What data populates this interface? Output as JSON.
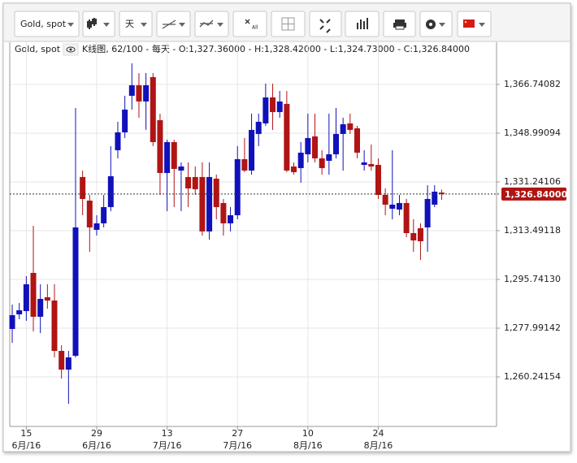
{
  "toolbar": {
    "symbol": "Gold, spot",
    "period": "天",
    "auto_scale_icon": "All"
  },
  "chart_data": {
    "type": "candlestick",
    "symbol": "Gold, spot",
    "info_text": "K线图, 62/100 - 每天 - O:1,327.36000 - H:1,328.42000 - L:1,324.73000 - C:1,326.84000",
    "up_color": "#1111bb",
    "down_color": "#b01414",
    "ylim": [
      1242.2,
      1382.1
    ],
    "xlim": [
      -0.35,
      68.8
    ],
    "yticks": [
      {
        "value": 1260.24154,
        "label": "1,260.24154"
      },
      {
        "value": 1277.99142,
        "label": "1,277.99142"
      },
      {
        "value": 1295.7413,
        "label": "1,295.74130"
      },
      {
        "value": 1313.49118,
        "label": "1,313.49118"
      },
      {
        "value": 1331.24106,
        "label": "1,331.24106"
      },
      {
        "value": 1348.99094,
        "label": "1,348.99094"
      },
      {
        "value": 1366.74082,
        "label": "1,366.74082"
      }
    ],
    "xticks": [
      {
        "value": 2,
        "label": "15",
        "month": "6月/16"
      },
      {
        "value": 12,
        "label": "29",
        "month": "6月/16"
      },
      {
        "value": 22,
        "label": "13",
        "month": "7月/16"
      },
      {
        "value": 32,
        "label": "27",
        "month": "7月/16"
      },
      {
        "value": 42,
        "label": "10",
        "month": "8月/16"
      },
      {
        "value": 52,
        "label": "24",
        "month": "8月/16"
      }
    ],
    "grid": true,
    "last_price": {
      "value": 1326.84,
      "label": "1,326.84000"
    },
    "series": [
      {
        "open": [
          1277.7,
          1283.02,
          1284.21,
          1298.11,
          1282.14,
          1289.24,
          1288.05,
          1269.71,
          1262.9,
          1267.93,
          1333.02,
          1324.44,
          1313.79,
          1316.15,
          1322.07,
          1342.78,
          1349.29,
          1362.6,
          1366.44,
          1360.53,
          1369.4,
          1353.72,
          1334.49,
          1345.74,
          1335.38,
          1333.02,
          1333.02,
          1333.02,
          1313.2,
          1332.42,
          1323.55,
          1316.15,
          1319.11,
          1339.52,
          1335.38,
          1348.7,
          1352.54,
          1362.01,
          1356.68,
          1359.64,
          1336.86,
          1336.27,
          1341.3,
          1347.81,
          1339.82,
          1338.93,
          1341.3,
          1348.7,
          1352.54,
          1350.77,
          1337.45,
          1337.75,
          1337.45,
          1326.51,
          1321.48,
          1321.18,
          1323.55,
          1312.6,
          1314.37,
          1314.67,
          1322.96,
          1327.36
        ],
        "high": [
          1286.57,
          1287.16,
          1296.92,
          1315.27,
          1293.97,
          1293.97,
          1293.97,
          1271.78,
          1269.71,
          1358.16,
          1335.38,
          1326.51,
          1319.11,
          1326.51,
          1344.26,
          1353.13,
          1362.6,
          1374.43,
          1370.88,
          1370.88,
          1370.88,
          1356.09,
          1346.62,
          1346.62,
          1338.34,
          1338.34,
          1336.86,
          1338.34,
          1338.34,
          1333.9,
          1325.03,
          1322.07,
          1344.26,
          1347.22,
          1356.09,
          1356.09,
          1367.04,
          1367.04,
          1364.37,
          1364.37,
          1338.34,
          1345.74,
          1356.09,
          1356.09,
          1342.78,
          1356.09,
          1358.16,
          1354.61,
          1356.09,
          1351.65,
          1342.78,
          1344.85,
          1339.82,
          1328.87,
          1342.78,
          1326.51,
          1325.03,
          1317.63,
          1316.15,
          1330.06,
          1330.06,
          1328.42
        ],
        "low": [
          1272.67,
          1281.25,
          1280.66,
          1276.81,
          1276.22,
          1285.09,
          1267.34,
          1259.65,
          1250.48,
          1267.34,
          1319.11,
          1305.8,
          1311.71,
          1314.67,
          1320.59,
          1339.82,
          1347.22,
          1357.57,
          1354.61,
          1350.17,
          1344.26,
          1326.51,
          1320.59,
          1322.07,
          1320.59,
          1322.07,
          1326.51,
          1311.71,
          1310.23,
          1317.63,
          1311.71,
          1313.2,
          1317.63,
          1334.79,
          1333.9,
          1344.26,
          1351.65,
          1350.17,
          1354.61,
          1334.79,
          1333.9,
          1330.94,
          1338.34,
          1338.34,
          1333.9,
          1333.9,
          1339.82,
          1335.38,
          1348.7,
          1339.82,
          1335.38,
          1335.38,
          1325.03,
          1319.11,
          1317.63,
          1319.11,
          1311.12,
          1305.8,
          1302.84,
          1305.8,
          1322.07,
          1324.73
        ],
        "close": [
          1282.73,
          1284.5,
          1293.97,
          1282.14,
          1288.64,
          1288.05,
          1269.71,
          1262.9,
          1267.34,
          1314.67,
          1325.03,
          1314.67,
          1316.15,
          1322.07,
          1333.31,
          1349.29,
          1357.57,
          1366.44,
          1360.53,
          1366.44,
          1345.74,
          1334.49,
          1345.74,
          1335.97,
          1336.86,
          1328.87,
          1328.58,
          1313.2,
          1333.02,
          1322.07,
          1316.15,
          1319.11,
          1339.52,
          1335.38,
          1350.17,
          1353.13,
          1362.01,
          1356.68,
          1360.53,
          1335.38,
          1334.79,
          1341.89,
          1347.22,
          1339.82,
          1336.27,
          1341.3,
          1348.7,
          1352.24,
          1350.17,
          1341.89,
          1338.34,
          1336.86,
          1326.51,
          1322.96,
          1322.96,
          1323.55,
          1312.6,
          1309.94,
          1309.64,
          1325.03,
          1327.69,
          1326.84
        ]
      }
    ]
  }
}
